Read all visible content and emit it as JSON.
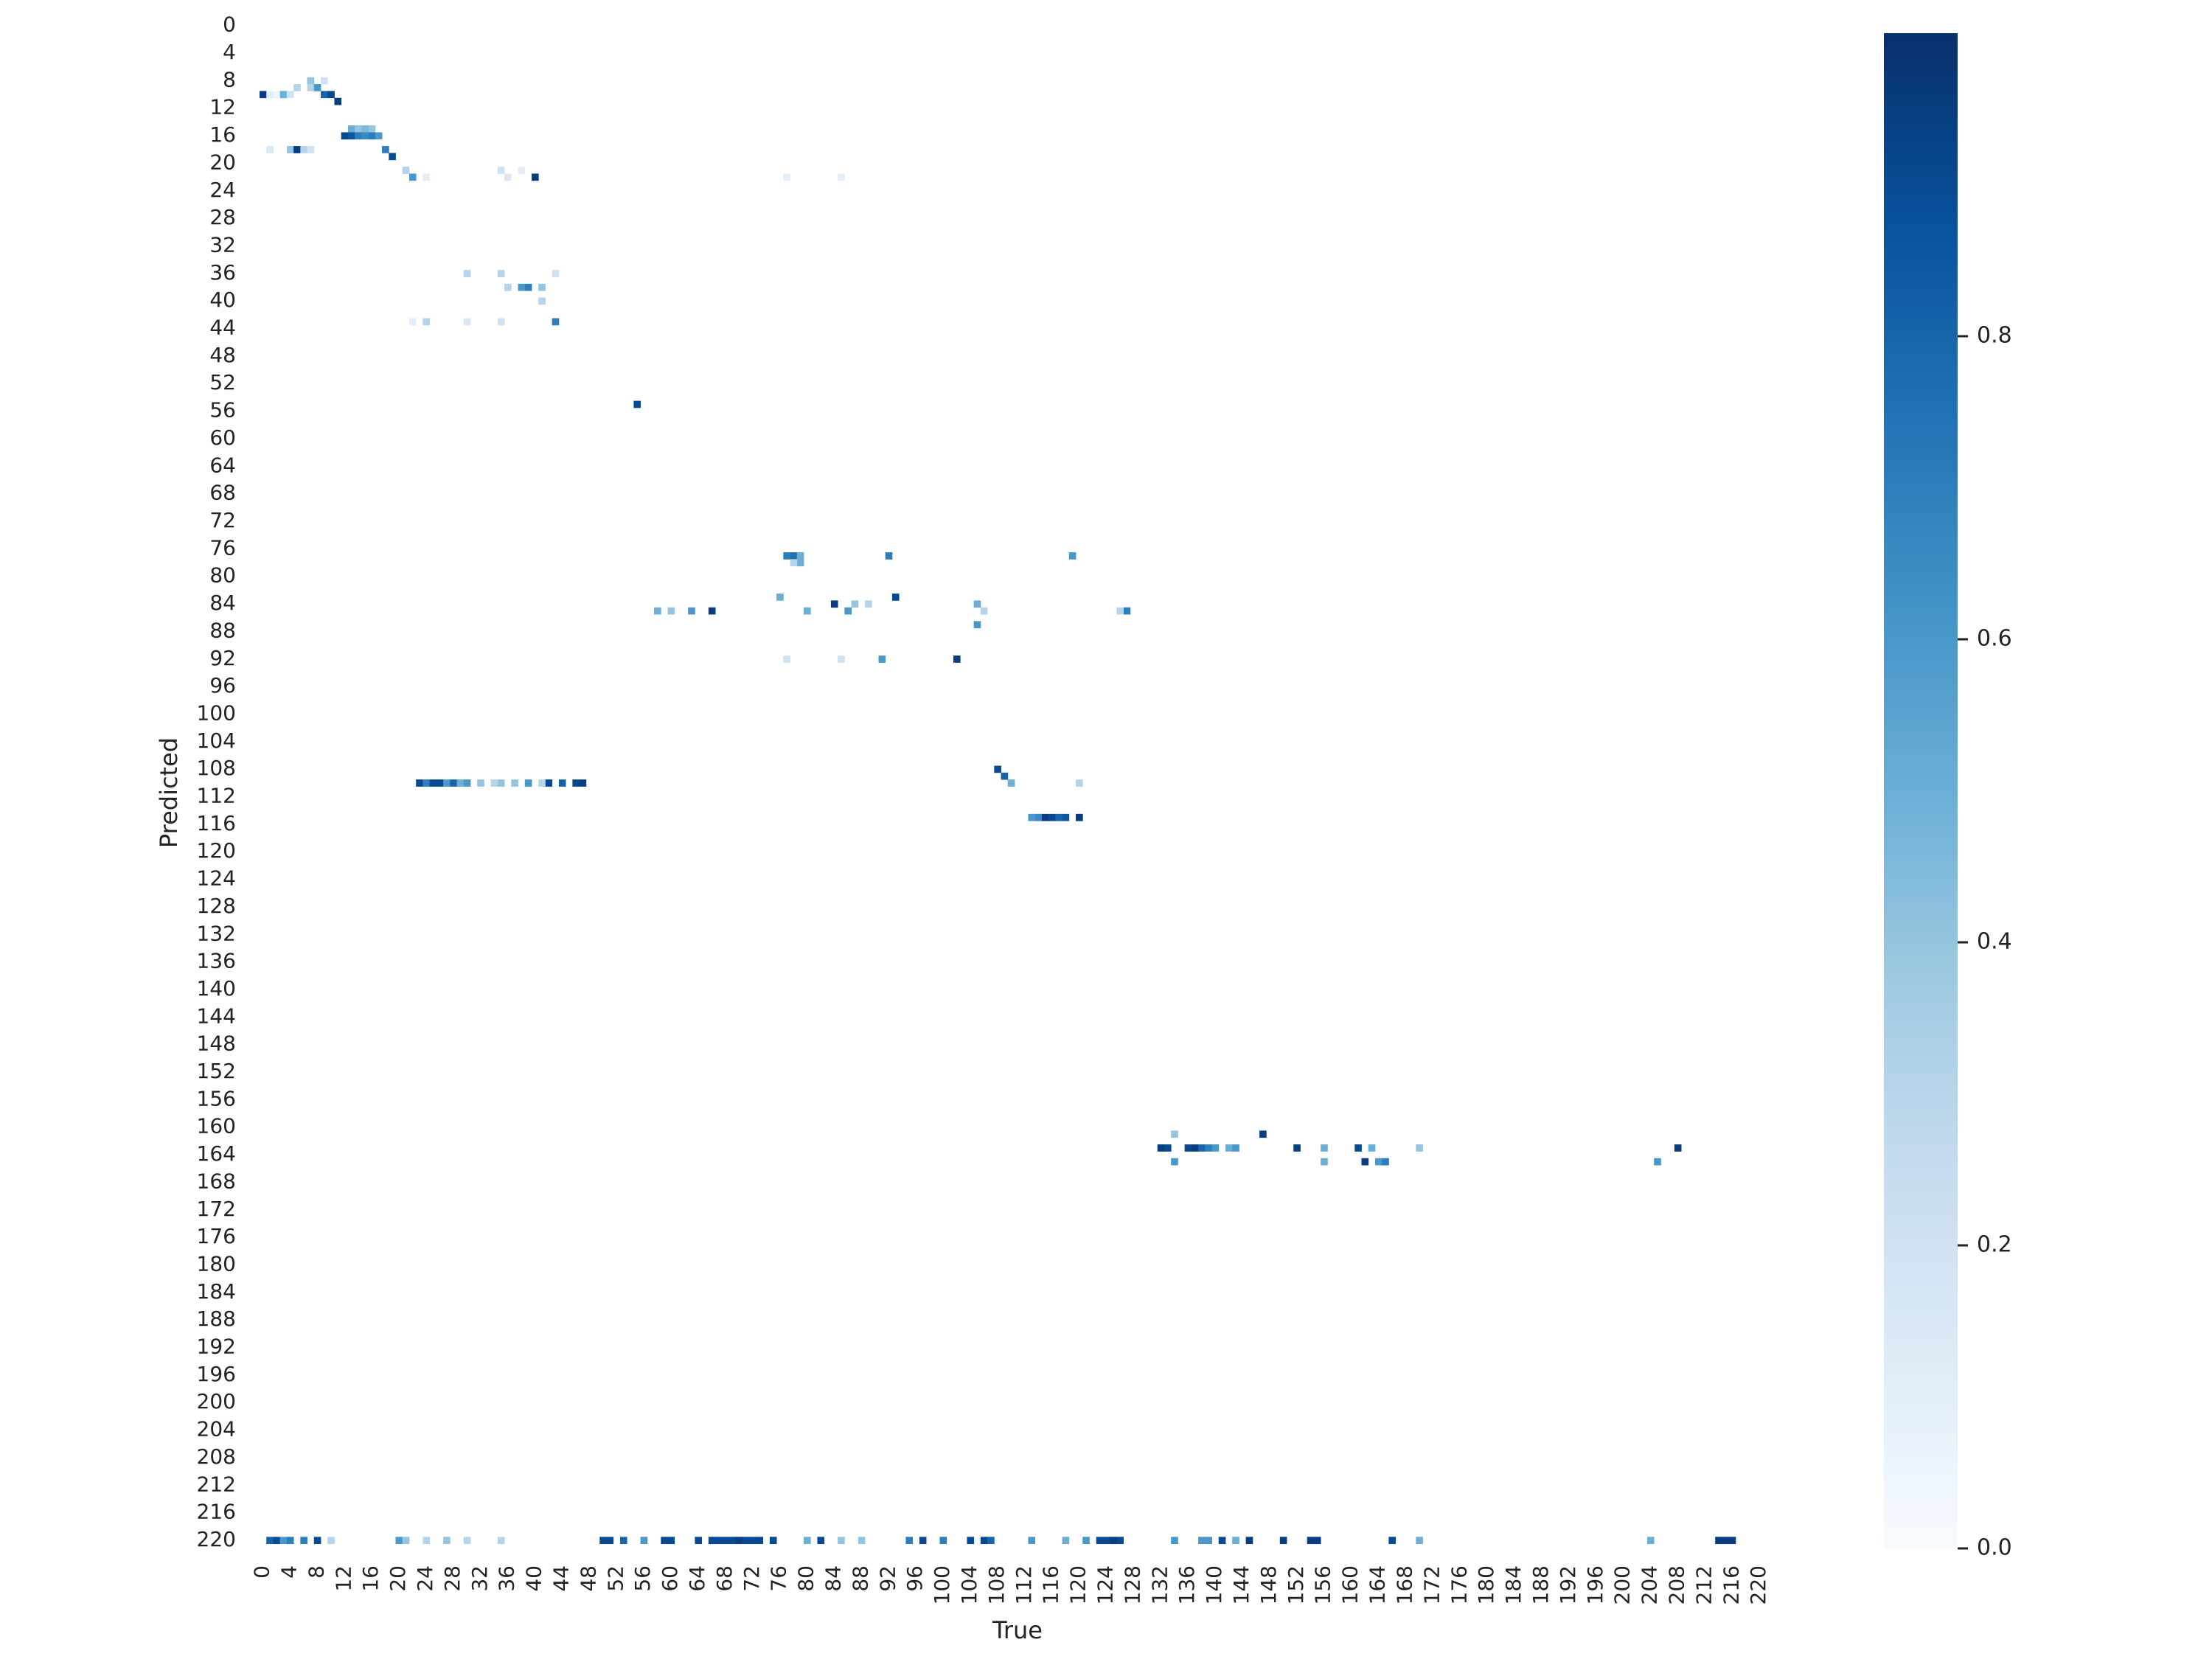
{
  "chart_data": {
    "type": "heatmap",
    "xlabel": "True",
    "ylabel": "Predicted",
    "n_classes": 222,
    "x_ticks": [
      0,
      4,
      8,
      12,
      16,
      20,
      24,
      28,
      32,
      36,
      40,
      44,
      48,
      52,
      56,
      60,
      64,
      68,
      72,
      76,
      80,
      84,
      88,
      92,
      96,
      100,
      104,
      108,
      112,
      116,
      120,
      124,
      128,
      132,
      136,
      140,
      144,
      148,
      152,
      156,
      160,
      164,
      168,
      172,
      176,
      180,
      184,
      188,
      192,
      196,
      200,
      204,
      208,
      212,
      216,
      220
    ],
    "y_ticks": [
      0,
      4,
      8,
      12,
      16,
      20,
      24,
      28,
      32,
      36,
      40,
      44,
      48,
      52,
      56,
      60,
      64,
      68,
      72,
      76,
      80,
      84,
      88,
      92,
      96,
      100,
      104,
      108,
      112,
      116,
      120,
      124,
      128,
      132,
      136,
      140,
      144,
      148,
      152,
      156,
      160,
      164,
      168,
      172,
      176,
      180,
      184,
      188,
      192,
      196,
      200,
      204,
      208,
      212,
      216,
      220
    ],
    "colorbar": {
      "cmap": "Blues",
      "range": [
        0,
        1
      ],
      "ticks": [
        0.0,
        0.2,
        0.4,
        0.6,
        0.8
      ],
      "tick_labels": [
        "0.0",
        "0.2",
        "0.4",
        "0.6",
        "0.8"
      ]
    },
    "cells": [
      [
        0,
        10,
        0.95
      ],
      [
        1,
        10,
        0.1
      ],
      [
        2,
        10,
        0.05
      ],
      [
        3,
        10,
        0.5
      ],
      [
        4,
        10,
        0.2
      ],
      [
        5,
        9,
        0.3
      ],
      [
        7,
        8,
        0.4
      ],
      [
        7,
        9,
        0.3
      ],
      [
        8,
        9,
        0.6
      ],
      [
        9,
        8,
        0.2
      ],
      [
        9,
        10,
        0.8
      ],
      [
        10,
        10,
        0.9
      ],
      [
        11,
        11,
        0.95
      ],
      [
        12,
        16,
        0.9
      ],
      [
        13,
        15,
        0.5
      ],
      [
        14,
        15,
        0.4
      ],
      [
        15,
        15,
        0.45
      ],
      [
        16,
        15,
        0.4
      ],
      [
        13,
        16,
        0.85
      ],
      [
        14,
        16,
        0.7
      ],
      [
        15,
        16,
        0.65
      ],
      [
        16,
        16,
        0.7
      ],
      [
        17,
        16,
        0.6
      ],
      [
        1,
        18,
        0.15
      ],
      [
        4,
        18,
        0.4
      ],
      [
        5,
        18,
        0.95
      ],
      [
        6,
        18,
        0.3
      ],
      [
        7,
        18,
        0.2
      ],
      [
        18,
        18,
        0.7
      ],
      [
        19,
        19,
        0.9
      ],
      [
        22,
        22,
        0.6
      ],
      [
        21,
        21,
        0.3
      ],
      [
        40,
        22,
        0.95
      ],
      [
        35,
        21,
        0.2
      ],
      [
        36,
        22,
        0.15
      ],
      [
        38,
        21,
        0.1
      ],
      [
        24,
        22,
        0.1
      ],
      [
        77,
        22,
        0.1
      ],
      [
        85,
        22,
        0.1
      ],
      [
        39,
        38,
        0.7
      ],
      [
        38,
        38,
        0.6
      ],
      [
        41,
        38,
        0.4
      ],
      [
        36,
        38,
        0.3
      ],
      [
        43,
        36,
        0.2
      ],
      [
        30,
        36,
        0.3
      ],
      [
        35,
        36,
        0.3
      ],
      [
        43,
        43,
        0.7
      ],
      [
        24,
        43,
        0.3
      ],
      [
        22,
        43,
        0.1
      ],
      [
        30,
        43,
        0.15
      ],
      [
        35,
        43,
        0.2
      ],
      [
        41,
        40,
        0.3
      ],
      [
        55,
        55,
        0.9
      ],
      [
        78,
        77,
        0.75
      ],
      [
        77,
        77,
        0.7
      ],
      [
        79,
        77,
        0.5
      ],
      [
        92,
        77,
        0.7
      ],
      [
        119,
        77,
        0.6
      ],
      [
        79,
        78,
        0.5
      ],
      [
        78,
        78,
        0.3
      ],
      [
        93,
        83,
        0.9
      ],
      [
        76,
        83,
        0.5
      ],
      [
        84,
        84,
        0.95
      ],
      [
        66,
        85,
        0.95
      ],
      [
        63,
        85,
        0.6
      ],
      [
        80,
        85,
        0.5
      ],
      [
        58,
        85,
        0.5
      ],
      [
        60,
        85,
        0.4
      ],
      [
        105,
        84,
        0.5
      ],
      [
        106,
        85,
        0.3
      ],
      [
        127,
        85,
        0.7
      ],
      [
        126,
        85,
        0.3
      ],
      [
        105,
        87,
        0.6
      ],
      [
        87,
        84,
        0.4
      ],
      [
        89,
        84,
        0.3
      ],
      [
        86,
        85,
        0.6
      ],
      [
        91,
        92,
        0.6
      ],
      [
        102,
        92,
        0.95
      ],
      [
        77,
        92,
        0.2
      ],
      [
        85,
        92,
        0.2
      ],
      [
        108,
        108,
        0.9
      ],
      [
        109,
        109,
        0.8
      ],
      [
        110,
        110,
        0.5
      ],
      [
        120,
        110,
        0.3
      ],
      [
        23,
        110,
        0.9
      ],
      [
        24,
        110,
        0.7
      ],
      [
        25,
        110,
        0.9
      ],
      [
        26,
        110,
        0.9
      ],
      [
        27,
        110,
        0.6
      ],
      [
        28,
        110,
        0.8
      ],
      [
        29,
        110,
        0.5
      ],
      [
        30,
        110,
        0.6
      ],
      [
        32,
        110,
        0.4
      ],
      [
        35,
        110,
        0.4
      ],
      [
        37,
        110,
        0.4
      ],
      [
        39,
        110,
        0.6
      ],
      [
        42,
        110,
        0.9
      ],
      [
        44,
        110,
        0.8
      ],
      [
        46,
        110,
        0.9
      ],
      [
        47,
        110,
        0.95
      ],
      [
        41,
        110,
        0.3
      ],
      [
        34,
        110,
        0.3
      ],
      [
        113,
        115,
        0.6
      ],
      [
        114,
        115,
        0.65
      ],
      [
        115,
        115,
        0.95
      ],
      [
        116,
        115,
        0.9
      ],
      [
        117,
        115,
        0.8
      ],
      [
        118,
        115,
        0.85
      ],
      [
        120,
        115,
        0.95
      ],
      [
        134,
        161,
        0.4
      ],
      [
        147,
        161,
        0.95
      ],
      [
        132,
        163,
        0.95
      ],
      [
        133,
        163,
        0.9
      ],
      [
        136,
        163,
        0.9
      ],
      [
        137,
        163,
        0.95
      ],
      [
        138,
        163,
        0.8
      ],
      [
        139,
        163,
        0.7
      ],
      [
        140,
        163,
        0.6
      ],
      [
        142,
        163,
        0.5
      ],
      [
        143,
        163,
        0.6
      ],
      [
        152,
        163,
        0.95
      ],
      [
        156,
        163,
        0.5
      ],
      [
        161,
        163,
        0.9
      ],
      [
        163,
        163,
        0.5
      ],
      [
        170,
        163,
        0.4
      ],
      [
        208,
        163,
        0.95
      ],
      [
        134,
        165,
        0.6
      ],
      [
        156,
        165,
        0.5
      ],
      [
        162,
        165,
        0.95
      ],
      [
        164,
        165,
        0.6
      ],
      [
        165,
        165,
        0.7
      ],
      [
        205,
        165,
        0.6
      ],
      [
        1,
        220,
        0.8
      ],
      [
        2,
        220,
        0.9
      ],
      [
        3,
        220,
        0.6
      ],
      [
        4,
        220,
        0.7
      ],
      [
        6,
        220,
        0.7
      ],
      [
        8,
        220,
        0.9
      ],
      [
        10,
        220,
        0.3
      ],
      [
        20,
        220,
        0.6
      ],
      [
        21,
        220,
        0.4
      ],
      [
        24,
        220,
        0.3
      ],
      [
        27,
        220,
        0.4
      ],
      [
        30,
        220,
        0.3
      ],
      [
        35,
        220,
        0.3
      ],
      [
        50,
        220,
        0.9
      ],
      [
        51,
        220,
        0.9
      ],
      [
        53,
        220,
        0.8
      ],
      [
        56,
        220,
        0.6
      ],
      [
        59,
        220,
        0.9
      ],
      [
        60,
        220,
        0.9
      ],
      [
        64,
        220,
        0.9
      ],
      [
        66,
        220,
        0.9
      ],
      [
        67,
        220,
        0.9
      ],
      [
        68,
        220,
        0.9
      ],
      [
        69,
        220,
        0.9
      ],
      [
        70,
        220,
        0.95
      ],
      [
        71,
        220,
        0.9
      ],
      [
        72,
        220,
        0.9
      ],
      [
        73,
        220,
        0.9
      ],
      [
        75,
        220,
        0.9
      ],
      [
        80,
        220,
        0.5
      ],
      [
        82,
        220,
        0.9
      ],
      [
        85,
        220,
        0.4
      ],
      [
        88,
        220,
        0.4
      ],
      [
        95,
        220,
        0.7
      ],
      [
        97,
        220,
        0.9
      ],
      [
        100,
        220,
        0.7
      ],
      [
        104,
        220,
        0.9
      ],
      [
        106,
        220,
        0.9
      ],
      [
        107,
        220,
        0.8
      ],
      [
        113,
        220,
        0.6
      ],
      [
        118,
        220,
        0.5
      ],
      [
        121,
        220,
        0.6
      ],
      [
        123,
        220,
        0.9
      ],
      [
        124,
        220,
        0.9
      ],
      [
        125,
        220,
        0.95
      ],
      [
        126,
        220,
        0.9
      ],
      [
        134,
        220,
        0.6
      ],
      [
        138,
        220,
        0.6
      ],
      [
        139,
        220,
        0.6
      ],
      [
        141,
        220,
        0.9
      ],
      [
        143,
        220,
        0.5
      ],
      [
        145,
        220,
        0.95
      ],
      [
        150,
        220,
        0.95
      ],
      [
        154,
        220,
        0.95
      ],
      [
        155,
        220,
        0.95
      ],
      [
        166,
        220,
        0.9
      ],
      [
        170,
        220,
        0.5
      ],
      [
        204,
        220,
        0.5
      ],
      [
        214,
        220,
        0.95
      ],
      [
        215,
        220,
        0.95
      ],
      [
        216,
        220,
        0.95
      ]
    ]
  }
}
